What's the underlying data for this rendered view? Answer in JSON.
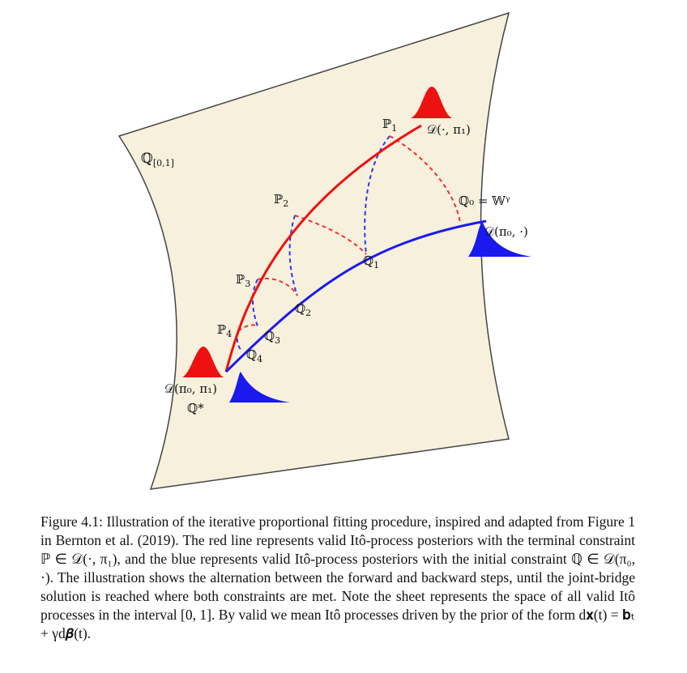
{
  "figure": {
    "sheet_label": "ℚ",
    "sheet_label_sub": "[0,1]",
    "labels": {
      "P1": "ℙ",
      "P1_sub": "1",
      "P2": "ℙ",
      "P2_sub": "2",
      "P3": "ℙ",
      "P3_sub": "3",
      "P4": "ℙ",
      "P4_sub": "4",
      "Q1": "ℚ",
      "Q1_sub": "1",
      "Q2": "ℚ",
      "Q2_sub": "2",
      "Q3": "ℚ",
      "Q3_sub": "3",
      "Q4": "ℚ",
      "Q4_sub": "4",
      "Q0": "ℚ₀ = 𝕎ᵞ",
      "D_terminal": "𝒟(·, π₁)",
      "D_initial": "𝒟(π₀, ·)",
      "D_joint": "𝒟(π₀, π₁)",
      "Q_star": "ℚ*"
    },
    "colors": {
      "sheet": "#f6f0dd",
      "red": "#ee1111",
      "blue": "#1a1aee",
      "dashed_red": "#ee3333",
      "dashed_blue": "#3333ee"
    }
  },
  "caption": {
    "text": "Figure 4.1: Illustration of the iterative proportional fitting procedure, inspired and adapted from Figure 1 in Bernton et al. (2019). The red line represents valid Itô-process posteriors with the terminal constraint ℙ ∈ 𝒟(·, π₁), and the blue represents valid Itô-process posteriors with the initial constraint ℚ ∈ 𝒟(π₀, ·). The illustration shows the alternation between the forward and backward steps, until the joint-bridge solution is reached where both constraints are met. Note the sheet represents the space of all valid Itô processes in the interval [0, 1]. By valid we mean Itô processes driven by the prior of the form d𝐱(t) = 𝐛ₜ + γd𝜷(t)."
  }
}
